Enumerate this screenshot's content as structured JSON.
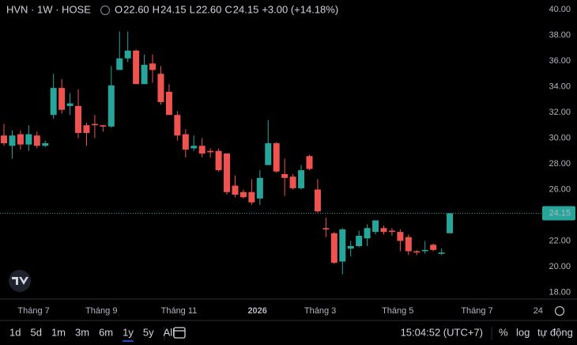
{
  "header": {
    "symbol": "HVN · 1W · HOSE",
    "ohlc": [
      {
        "label": "O",
        "value": "22.60"
      },
      {
        "label": "H",
        "value": "24.15"
      },
      {
        "label": "L",
        "value": "22.60"
      },
      {
        "label": "C",
        "value": "24.15"
      }
    ],
    "change": "+3.00 (+14.18%)"
  },
  "chart_data": {
    "type": "candlestick",
    "up_color": "#26a69a",
    "down_color": "#ef5350",
    "open": [
      30.2,
      29.4,
      30.3,
      29.5,
      30.2,
      29.4,
      31.8,
      33.9,
      32.5,
      32.5,
      31.0,
      31.1,
      31.0,
      30.9,
      35.3,
      36.2,
      36.8,
      34.2,
      35.8,
      35.0,
      33.6,
      31.8,
      30.3,
      29.2,
      29.4,
      29.0,
      29.0,
      28.8,
      26.3,
      25.8,
      25.8,
      25.3,
      27.9,
      29.6,
      27.2,
      27.0,
      26.1,
      28.6,
      26.0,
      23.0,
      22.6,
      20.4,
      21.4,
      21.6,
      22.2,
      22.7,
      23.0,
      22.8,
      22.7,
      22.3,
      21.2,
      21.2,
      21.7,
      21.0,
      22.6
    ],
    "high": [
      31.1,
      30.6,
      30.6,
      31.0,
      30.5,
      29.8,
      35.0,
      34.6,
      33.5,
      33.8,
      31.2,
      31.8,
      31.0,
      35.6,
      38.3,
      38.3,
      36.9,
      36.5,
      36.5,
      35.6,
      34.2,
      32.1,
      30.7,
      30.2,
      30.0,
      29.2,
      29.2,
      28.8,
      27.1,
      26.0,
      26.8,
      27.5,
      31.4,
      29.7,
      28.4,
      27.2,
      27.9,
      28.7,
      26.8,
      23.8,
      22.7,
      23.0,
      22.0,
      22.8,
      23.3,
      23.6,
      23.2,
      23.0,
      22.9,
      22.5,
      21.3,
      22.0,
      21.8,
      21.4,
      24.15
    ],
    "low": [
      29.4,
      28.4,
      29.1,
      29.0,
      29.2,
      29.3,
      31.5,
      31.9,
      31.8,
      30.0,
      29.4,
      30.0,
      30.5,
      30.8,
      35.3,
      35.9,
      34.2,
      34.2,
      34.3,
      32.6,
      31.8,
      29.8,
      28.5,
      29.0,
      28.5,
      28.5,
      27.4,
      25.6,
      25.4,
      25.3,
      24.8,
      24.8,
      27.9,
      27.3,
      25.5,
      26.0,
      26.0,
      27.5,
      24.2,
      22.3,
      20.2,
      19.4,
      20.8,
      21.5,
      21.6,
      22.5,
      22.5,
      22.4,
      21.2,
      20.9,
      20.9,
      21.0,
      21.2,
      20.9,
      22.6
    ],
    "close": [
      29.6,
      30.2,
      29.5,
      30.3,
      29.4,
      29.6,
      33.9,
      32.2,
      32.7,
      30.4,
      30.4,
      31.0,
      30.9,
      34.1,
      36.2,
      36.8,
      34.2,
      35.7,
      35.3,
      32.8,
      31.8,
      30.2,
      29.1,
      29.4,
      28.8,
      28.9,
      27.5,
      25.8,
      25.6,
      25.4,
      25.0,
      26.9,
      29.6,
      27.4,
      26.9,
      26.1,
      27.5,
      27.6,
      24.3,
      22.9,
      20.3,
      22.9,
      21.6,
      22.4,
      23.0,
      23.6,
      22.7,
      22.7,
      22.0,
      21.2,
      21.1,
      21.3,
      21.3,
      21.1,
      24.15
    ],
    "xlim": [
      -0.48,
      65.1
    ],
    "xticks": [
      {
        "value": 3.6,
        "label": "Tháng 7"
      },
      {
        "value": 11.8,
        "label": "Tháng 9"
      },
      {
        "value": 21.2,
        "label": "Tháng 11"
      },
      {
        "value": 30.7,
        "label": "2026"
      },
      {
        "value": 38.3,
        "label": "Tháng 3"
      },
      {
        "value": 47.7,
        "label": "Tháng 5"
      },
      {
        "value": 57.3,
        "label": "Tháng 7"
      },
      {
        "value": 64.7,
        "label": "24"
      }
    ],
    "ylim": [
      17.66,
      40.74
    ],
    "yticks": [
      {
        "value": 18,
        "label": "18.00"
      },
      {
        "value": 20,
        "label": "20.00"
      },
      {
        "value": 22,
        "label": "22.00"
      },
      {
        "value": 24,
        "label": "24.00"
      },
      {
        "value": 26,
        "label": "26.00"
      },
      {
        "value": 28,
        "label": "28.00"
      },
      {
        "value": 30,
        "label": "30.00"
      },
      {
        "value": 32,
        "label": "32.00"
      },
      {
        "value": 34,
        "label": "34.00"
      },
      {
        "value": 36,
        "label": "36.00"
      },
      {
        "value": 38,
        "label": "38.00"
      },
      {
        "value": 40,
        "label": "40.00"
      }
    ],
    "last_price": {
      "value": 24.15,
      "label": "24.15"
    },
    "grid": false
  },
  "toolbar": {
    "ranges": [
      "1d",
      "5d",
      "1m",
      "3m",
      "6m",
      "1y",
      "5y",
      "All"
    ],
    "active_range": "1y",
    "time": "15:04:52 (UTC+7)",
    "right": [
      "%",
      "log",
      "tự động"
    ]
  }
}
